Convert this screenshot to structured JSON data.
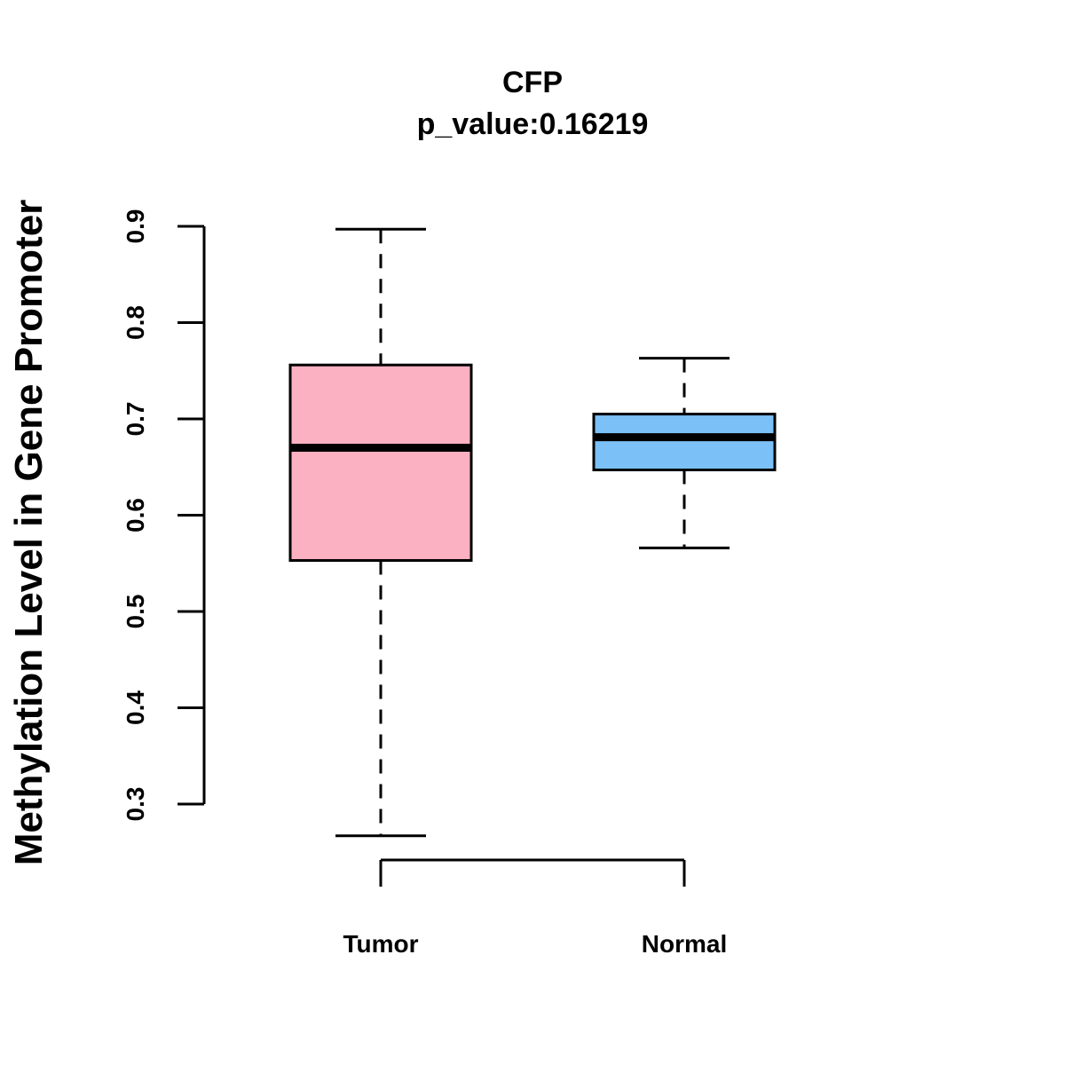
{
  "chart_data": {
    "type": "boxplot",
    "title": "CFP",
    "subtitle": "p_value:0.16219",
    "xlabel": "",
    "ylabel": "Methylation Level in Gene Promoter",
    "ylim": [
      0.3,
      0.9
    ],
    "yticks": [
      "0.3",
      "0.4",
      "0.5",
      "0.6",
      "0.7",
      "0.8",
      "0.9"
    ],
    "categories": [
      "Tumor",
      "Normal"
    ],
    "boxes": [
      {
        "name": "Tumor",
        "min": 0.267,
        "q1": 0.553,
        "median": 0.67,
        "q3": 0.756,
        "max": 0.897,
        "color": "#FBB1C1"
      },
      {
        "name": "Normal",
        "min": 0.566,
        "q1": 0.647,
        "median": 0.681,
        "q3": 0.705,
        "max": 0.763,
        "color": "#7BC1F7"
      }
    ]
  }
}
